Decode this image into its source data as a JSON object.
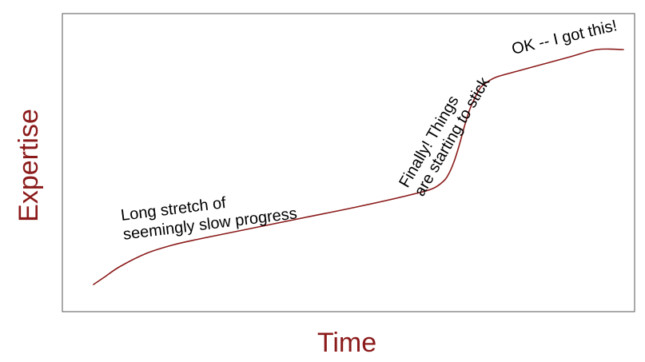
{
  "chart_data": {
    "type": "line",
    "title": "",
    "xlabel": "Time",
    "ylabel": "Expertise",
    "grid": false,
    "legend": "none",
    "ticks": false,
    "series": [
      {
        "x": [
          0,
          2,
          5,
          10,
          15,
          20,
          30,
          40,
          50,
          60,
          64,
          66,
          67,
          68,
          69,
          70,
          71,
          72,
          73,
          74,
          76,
          80,
          85,
          90,
          95,
          100
        ],
        "y": [
          2,
          5,
          9.5,
          15,
          18.5,
          21,
          25.5,
          30,
          34.5,
          39.5,
          42,
          45,
          48,
          53,
          60,
          68,
          75,
          80,
          84,
          86,
          88.5,
          91,
          94,
          97,
          100,
          100
        ]
      }
    ],
    "annotations": [
      {
        "lines": [
          "Long stretch of",
          "seemingly slow progress"
        ]
      },
      {
        "lines": [
          "Finally! Things",
          "are starting to stick"
        ]
      },
      {
        "lines": [
          "OK -- I got this!"
        ]
      }
    ],
    "colors": {
      "curve": "#8b1a1a",
      "axis_title": "#8b1a1a",
      "frame": "#555555",
      "annotation": "#000000"
    }
  }
}
